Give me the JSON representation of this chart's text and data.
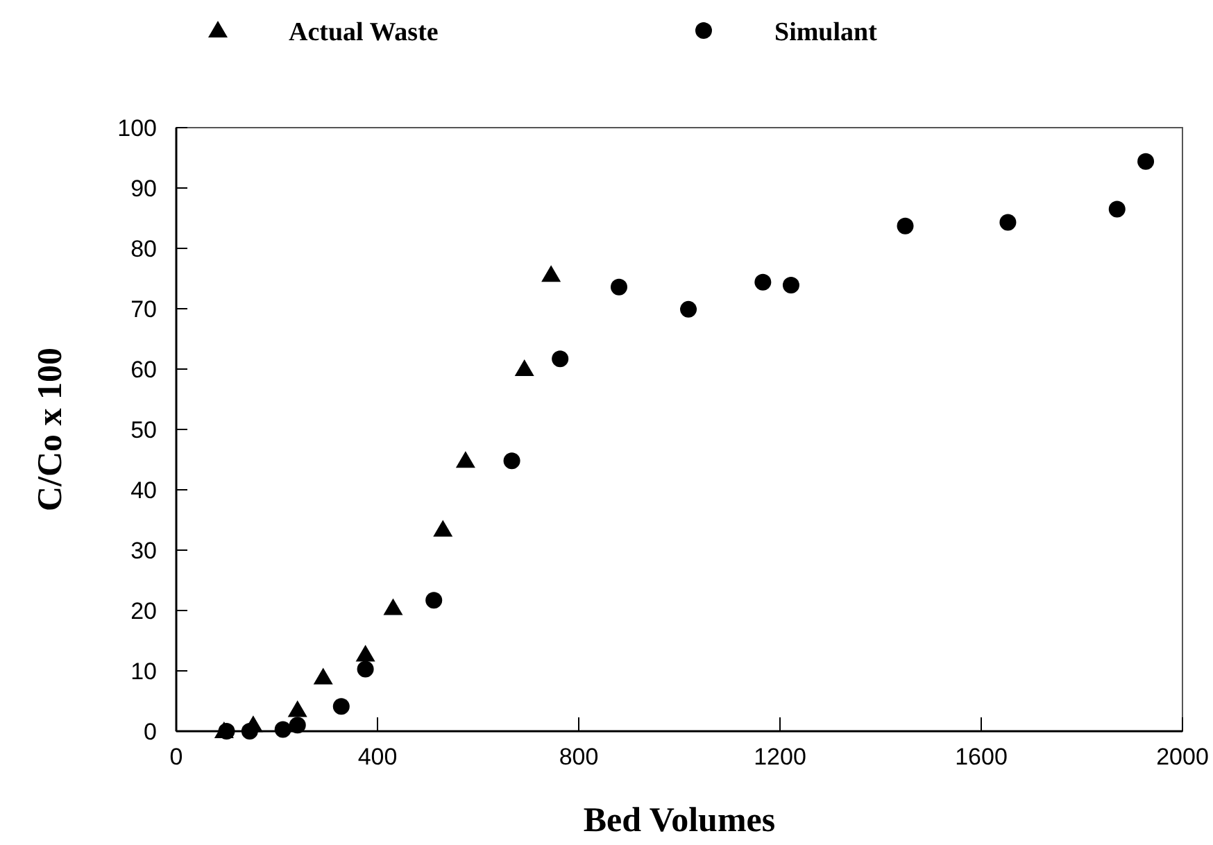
{
  "chart_data": {
    "type": "scatter",
    "xlabel": "Bed Volumes",
    "ylabel": "C/Co x 100",
    "xlim": [
      0,
      2000
    ],
    "xticks": [
      0,
      400,
      800,
      1200,
      1600,
      2000
    ],
    "ylim": [
      0,
      100
    ],
    "yticks": [
      0,
      10,
      20,
      30,
      40,
      50,
      60,
      70,
      80,
      90,
      100
    ],
    "grid": false,
    "legend": "top",
    "series": [
      {
        "name": "Actual Waste",
        "color": "#000000",
        "marker": "triangle",
        "x": [
          95,
          153,
          241,
          292,
          376,
          431,
          530,
          575,
          692,
          745
        ],
        "values": [
          0,
          1.0,
          3.5,
          8.9,
          12.7,
          20.4,
          33.4,
          44.8,
          60.0,
          75.6
        ]
      },
      {
        "name": "Simulant",
        "color": "#000000",
        "marker": "circle",
        "x": [
          100,
          146,
          212,
          241,
          328,
          376,
          512,
          667,
          763,
          880,
          1018,
          1166,
          1222,
          1449,
          1653,
          1870,
          1927
        ],
        "values": [
          0,
          0,
          0.3,
          1.0,
          4.1,
          10.3,
          21.7,
          44.8,
          61.7,
          73.6,
          69.9,
          74.4,
          73.9,
          83.7,
          84.3,
          86.5,
          94.4
        ]
      }
    ]
  }
}
